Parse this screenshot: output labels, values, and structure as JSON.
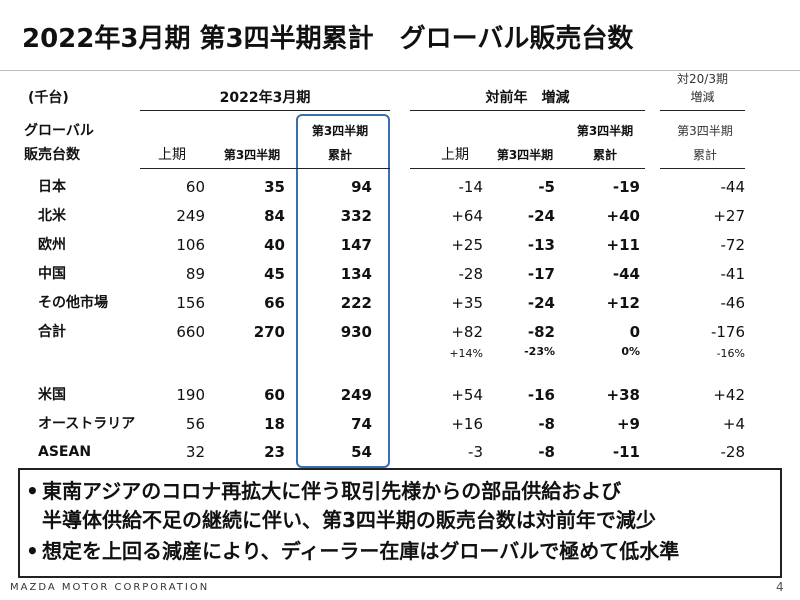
{
  "title": "2022年3月期 第3四半期累計　グローバル販売台数",
  "table": {
    "unit": "(千台)",
    "group_headers": [
      "2022年3月期",
      "対前年　増減"
    ],
    "side_header": [
      "対20/3期",
      "増減"
    ],
    "row_header": [
      "グローバル",
      "販売台数"
    ],
    "columns": [
      [
        "上期"
      ],
      [
        "第3四半期"
      ],
      [
        "第3四半期",
        "累計"
      ],
      [
        "上期"
      ],
      [
        "第3四半期"
      ],
      [
        "第3四半期",
        "累計"
      ],
      [
        "第3四半期",
        "累計"
      ]
    ],
    "rows": [
      {
        "label": "日本",
        "cells": [
          "60",
          "35",
          "94",
          "-14",
          "-5",
          "-19",
          "-44"
        ]
      },
      {
        "label": "北米",
        "cells": [
          "249",
          "84",
          "332",
          "+64",
          "-24",
          "+40",
          "+27"
        ]
      },
      {
        "label": "欧州",
        "cells": [
          "106",
          "40",
          "147",
          "+25",
          "-13",
          "+11",
          "-72"
        ]
      },
      {
        "label": "中国",
        "cells": [
          "89",
          "45",
          "134",
          "-28",
          "-17",
          "-44",
          "-41"
        ]
      },
      {
        "label": "その他市場",
        "cells": [
          "156",
          "66",
          "222",
          "+35",
          "-24",
          "+12",
          "-46"
        ]
      },
      {
        "label": "合計",
        "cells": [
          "660",
          "270",
          "930",
          "+82",
          "-82",
          "0",
          "-176"
        ],
        "sub_cells": [
          "+14%",
          "-23%",
          "0%",
          "-16%"
        ]
      },
      {
        "label": "米国",
        "cells": [
          "190",
          "60",
          "249",
          "+54",
          "-16",
          "+38",
          "+42"
        ]
      },
      {
        "label": "オーストラリア",
        "cells": [
          "56",
          "18",
          "74",
          "+16",
          "-8",
          "+9",
          "+4"
        ]
      },
      {
        "label": "ASEAN",
        "cells": [
          "32",
          "23",
          "54",
          "-3",
          "-8",
          "-11",
          "-28"
        ]
      }
    ]
  },
  "bullets": [
    [
      "東南アジアのコロナ再拡大に伴う取引先様からの部品供給および",
      "半導体供給不足の継続に伴い、第3四半期の販売台数は対前年で減少"
    ],
    [
      "想定を上回る減産により、ディーラー在庫はグローバルで極めて低水準"
    ]
  ],
  "footer": {
    "company": "MAZDA MOTOR CORPORATION",
    "page": "4"
  }
}
